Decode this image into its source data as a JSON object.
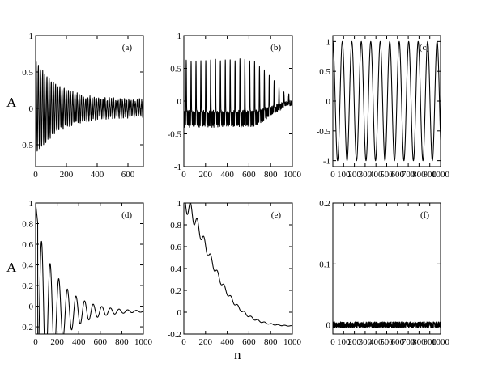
{
  "figure": {
    "ylabel": "A",
    "xlabel": "n"
  },
  "chart_data": [
    {
      "panel": "(a)",
      "type": "line",
      "xlim": [
        0,
        700
      ],
      "ylim": [
        -0.8,
        1
      ],
      "xticks": [
        0,
        200,
        400,
        600
      ],
      "yticks": [
        -0.5,
        0,
        0.5,
        1
      ],
      "ytick_labels": [
        "-0.5",
        "0",
        "0.5",
        "1"
      ],
      "series": [
        {
          "model": "decaying_oscillation",
          "n_max": 700,
          "samples": 700,
          "initial_amplitude": 0.65,
          "final_amplitude": 0.1,
          "period": 14,
          "noise": 0.06
        }
      ]
    },
    {
      "panel": "(b)",
      "type": "line",
      "xlim": [
        0,
        1000
      ],
      "ylim": [
        -1,
        1
      ],
      "xticks": [
        0,
        200,
        400,
        600,
        800,
        1000
      ],
      "yticks": [
        -1,
        -0.5,
        0,
        0.5,
        1
      ],
      "ytick_labels": [
        "-1",
        "-0.5",
        "0",
        "0.5",
        "1"
      ],
      "series": [
        {
          "model": "spiky_oscillation",
          "n_max": 1000,
          "samples": 1000,
          "period": 45,
          "peak_amplitude": 0.68,
          "trough": -0.3,
          "fade_start": 650,
          "noise": 0.05
        }
      ]
    },
    {
      "panel": "(c)",
      "type": "line",
      "xlim": [
        0,
        1000
      ],
      "ylim": [
        -1.1,
        1.1
      ],
      "xticks": [
        0,
        100,
        200,
        300,
        400,
        500,
        600,
        700,
        800,
        900,
        1000
      ],
      "yticks": [
        -1,
        -0.5,
        0,
        0.5,
        1
      ],
      "ytick_labels": [
        "-1",
        "-0.5",
        "0",
        "0.5",
        "1"
      ],
      "series": [
        {
          "model": "steady_oscillation",
          "n_max": 1000,
          "samples": 1000,
          "period": 88,
          "amplitude": 1.0
        }
      ]
    },
    {
      "panel": "(d)",
      "type": "line",
      "xlim": [
        0,
        1000
      ],
      "ylim": [
        -0.27,
        1
      ],
      "xticks": [
        0,
        200,
        400,
        600,
        800,
        1000
      ],
      "yticks": [
        -0.2,
        0,
        0.2,
        0.4,
        0.6,
        0.8,
        1
      ],
      "ytick_labels": [
        "-0.2",
        "0",
        "0.2",
        "0.4",
        "0.6",
        "0.8",
        "1"
      ],
      "series": [
        {
          "model": "damped_oscillation",
          "n_max": 1000,
          "samples": 1000,
          "start": 1.0,
          "offset": -0.05,
          "period": 80,
          "initial_amplitude": 0.8,
          "decay": 210
        }
      ]
    },
    {
      "panel": "(e)",
      "type": "line",
      "xlim": [
        0,
        1000
      ],
      "ylim": [
        -0.2,
        1
      ],
      "xticks": [
        0,
        200,
        400,
        600,
        800,
        1000
      ],
      "yticks": [
        -0.2,
        0,
        0.2,
        0.4,
        0.6,
        0.8,
        1
      ],
      "ytick_labels": [
        "-0.2",
        "0",
        "0.2",
        "0.4",
        "0.6",
        "0.8",
        "1"
      ],
      "series": [
        {
          "model": "damped_decay",
          "n_max": 1000,
          "samples": 1000,
          "start": 1.0,
          "end": -0.13,
          "period": 62,
          "ripple": 0.09
        }
      ]
    },
    {
      "panel": "(f)",
      "type": "line",
      "xlim": [
        0,
        1000
      ],
      "ylim": [
        -0.015,
        0.2
      ],
      "xticks": [
        0,
        100,
        200,
        300,
        400,
        500,
        600,
        700,
        800,
        900,
        1000
      ],
      "yticks": [
        0,
        0.1,
        0.2
      ],
      "ytick_labels": [
        "0",
        "0.1",
        "0.2"
      ],
      "series": [
        {
          "model": "noise",
          "n_max": 1000,
          "samples": 1000,
          "mean": 0,
          "amplitude": 0.005
        }
      ]
    }
  ]
}
